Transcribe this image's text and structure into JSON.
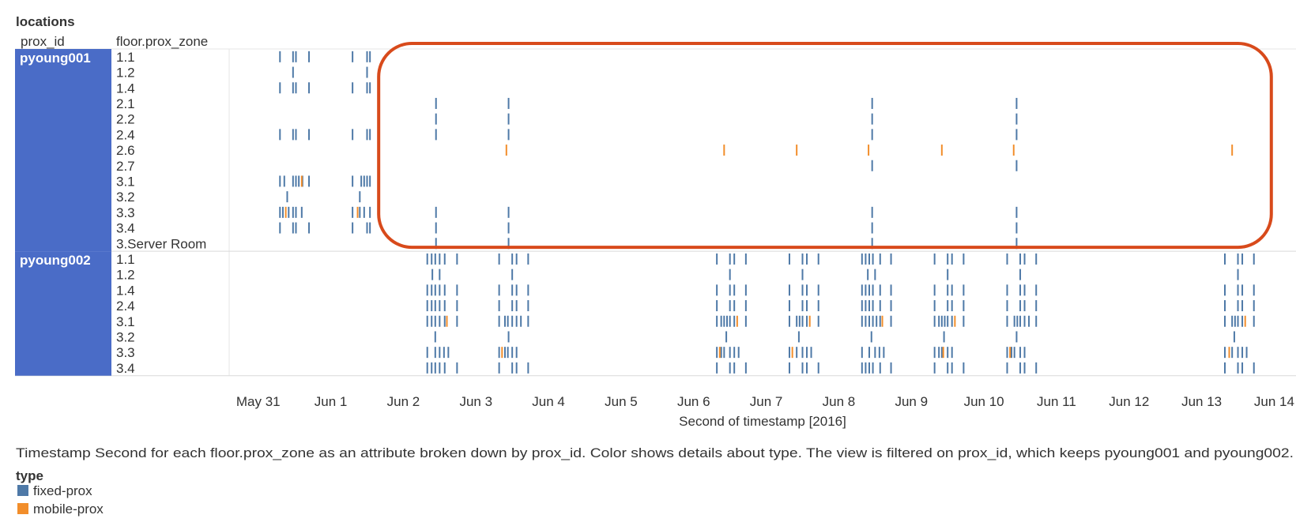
{
  "sheet_title": "locations",
  "col_headers": {
    "prox_id": "prox_id",
    "zone": "floor.prox_zone"
  },
  "x_axis_title": "Second of timestamp [2016]",
  "caption": "Timestamp Second for each floor.prox_zone as an attribute broken down by prox_id.  Color shows details about type. The view is filtered on prox_id, which keeps pyoung001 and pyoung002.",
  "legend": {
    "title": "type",
    "items": [
      {
        "label": "fixed-prox",
        "color": "#4E79A7"
      },
      {
        "label": "mobile-prox",
        "color": "#F28E2B"
      }
    ]
  },
  "colors": {
    "fixed": "#4E79A7",
    "mobile": "#F28E2B",
    "group_band": "#4A6CC7",
    "highlight": "#D84A1B"
  },
  "chart_data": {
    "type": "strip",
    "x_unit": "day of June 2016 (May 31 = 0)",
    "xlim": [
      -0.4,
      14.3
    ],
    "x_ticks": [
      {
        "label": "May 31",
        "value": 0
      },
      {
        "label": "Jun 1",
        "value": 1
      },
      {
        "label": "Jun 2",
        "value": 2
      },
      {
        "label": "Jun 3",
        "value": 3
      },
      {
        "label": "Jun 4",
        "value": 4
      },
      {
        "label": "Jun 5",
        "value": 5
      },
      {
        "label": "Jun 6",
        "value": 6
      },
      {
        "label": "Jun 7",
        "value": 7
      },
      {
        "label": "Jun 8",
        "value": 8
      },
      {
        "label": "Jun 9",
        "value": 9
      },
      {
        "label": "Jun 10",
        "value": 10
      },
      {
        "label": "Jun 11",
        "value": 11
      },
      {
        "label": "Jun 12",
        "value": 12
      },
      {
        "label": "Jun 13",
        "value": 13
      },
      {
        "label": "Jun 14",
        "value": 14
      }
    ],
    "groups": [
      {
        "prox_id": "pyoung001",
        "zones": [
          {
            "zone": "1.1",
            "fixed": [
              0.3,
              0.48,
              0.52,
              0.7,
              1.3,
              1.5,
              1.54
            ],
            "mobile": []
          },
          {
            "zone": "1.2",
            "fixed": [
              0.48,
              1.5
            ],
            "mobile": []
          },
          {
            "zone": "1.4",
            "fixed": [
              0.3,
              0.48,
              0.52,
              0.7,
              1.3,
              1.5,
              1.54
            ],
            "mobile": []
          },
          {
            "zone": "2.1",
            "fixed": [
              2.45,
              3.45,
              8.46,
              10.45
            ],
            "mobile": []
          },
          {
            "zone": "2.2",
            "fixed": [
              2.45,
              3.45,
              8.46,
              10.45
            ],
            "mobile": []
          },
          {
            "zone": "2.4",
            "fixed": [
              0.3,
              0.48,
              0.52,
              0.7,
              1.3,
              1.5,
              1.54,
              2.45,
              3.45,
              8.46,
              10.45
            ],
            "mobile": []
          },
          {
            "zone": "2.6",
            "fixed": [],
            "mobile": [
              3.42,
              6.42,
              7.42,
              8.41,
              9.42,
              10.41,
              13.42
            ]
          },
          {
            "zone": "2.7",
            "fixed": [
              8.46,
              10.45
            ],
            "mobile": []
          },
          {
            "zone": "3.1",
            "fixed": [
              0.3,
              0.36,
              0.48,
              0.52,
              0.56,
              0.61,
              0.7,
              1.3,
              1.42,
              1.46,
              1.5,
              1.54
            ],
            "mobile": [
              0.6
            ]
          },
          {
            "zone": "3.2",
            "fixed": [
              0.4,
              1.4
            ],
            "mobile": []
          },
          {
            "zone": "3.3",
            "fixed": [
              0.3,
              0.34,
              0.42,
              0.48,
              0.52,
              0.6,
              1.3,
              1.4,
              1.46,
              1.54,
              2.45,
              3.45,
              8.46,
              10.45
            ],
            "mobile": [
              0.38,
              1.37
            ]
          },
          {
            "zone": "3.4",
            "fixed": [
              0.3,
              0.48,
              0.52,
              0.7,
              1.3,
              1.5,
              1.54,
              2.45,
              3.45,
              8.46,
              10.45
            ],
            "mobile": []
          },
          {
            "zone": "3.Server Room",
            "fixed": [
              2.45,
              3.45,
              8.46,
              10.45
            ],
            "mobile": []
          }
        ]
      },
      {
        "prox_id": "pyoung002",
        "zones": [
          {
            "zone": "1.1",
            "fixed": [
              2.33,
              2.39,
              2.44,
              2.5,
              2.57,
              2.74,
              3.32,
              3.5,
              3.56,
              3.72,
              6.32,
              6.5,
              6.56,
              6.72,
              7.32,
              7.5,
              7.56,
              7.72,
              8.32,
              8.37,
              8.42,
              8.47,
              8.57,
              8.72,
              9.32,
              9.5,
              9.56,
              9.72,
              10.32,
              10.5,
              10.56,
              10.72,
              13.32,
              13.5,
              13.56,
              13.72
            ],
            "mobile": []
          },
          {
            "zone": "1.2",
            "fixed": [
              2.4,
              2.5,
              3.5,
              6.5,
              7.5,
              8.4,
              8.5,
              9.5,
              10.5,
              13.5
            ],
            "mobile": []
          },
          {
            "zone": "1.4",
            "fixed": [
              2.33,
              2.39,
              2.44,
              2.5,
              2.57,
              2.74,
              3.32,
              3.5,
              3.56,
              3.72,
              6.32,
              6.5,
              6.56,
              6.72,
              7.32,
              7.5,
              7.56,
              7.72,
              8.32,
              8.37,
              8.42,
              8.47,
              8.57,
              8.72,
              9.32,
              9.5,
              9.56,
              9.72,
              10.32,
              10.5,
              10.56,
              10.72,
              13.32,
              13.5,
              13.56,
              13.72
            ],
            "mobile": []
          },
          {
            "zone": "2.4",
            "fixed": [
              2.33,
              2.39,
              2.44,
              2.5,
              2.57,
              2.74,
              3.32,
              3.5,
              3.56,
              3.72,
              6.32,
              6.5,
              6.56,
              6.72,
              7.32,
              7.5,
              7.56,
              7.72,
              8.32,
              8.37,
              8.42,
              8.47,
              8.57,
              8.72,
              9.32,
              9.5,
              9.56,
              9.72,
              10.32,
              10.5,
              10.56,
              10.72,
              13.32,
              13.5,
              13.56,
              13.72
            ],
            "mobile": []
          },
          {
            "zone": "3.1",
            "fixed": [
              2.33,
              2.39,
              2.44,
              2.5,
              2.57,
              2.74,
              3.32,
              3.4,
              3.44,
              3.5,
              3.56,
              3.62,
              3.72,
              6.32,
              6.38,
              6.42,
              6.46,
              6.5,
              6.56,
              6.72,
              7.32,
              7.42,
              7.46,
              7.5,
              7.56,
              7.72,
              8.32,
              8.37,
              8.42,
              8.47,
              8.52,
              8.57,
              8.72,
              9.32,
              9.38,
              9.42,
              9.46,
              9.5,
              9.56,
              9.72,
              10.32,
              10.42,
              10.46,
              10.5,
              10.56,
              10.62,
              10.72,
              13.32,
              13.42,
              13.46,
              13.5,
              13.56,
              13.72
            ],
            "mobile": [
              2.6,
              6.6,
              7.6,
              8.6,
              9.6,
              13.6
            ]
          },
          {
            "zone": "3.2",
            "fixed": [
              2.44,
              3.45,
              6.45,
              7.45,
              8.45,
              9.45,
              10.45,
              13.45
            ],
            "mobile": []
          },
          {
            "zone": "3.3",
            "fixed": [
              2.33,
              2.44,
              2.5,
              2.56,
              2.62,
              3.32,
              3.4,
              3.44,
              3.5,
              3.56,
              6.32,
              6.38,
              6.42,
              6.5,
              6.56,
              6.62,
              7.32,
              7.42,
              7.5,
              7.56,
              7.62,
              8.32,
              8.42,
              8.5,
              8.56,
              8.62,
              9.32,
              9.38,
              9.42,
              9.5,
              9.56,
              10.32,
              10.38,
              10.42,
              10.5,
              10.56,
              13.32,
              13.42,
              13.5,
              13.56,
              13.62
            ],
            "mobile": [
              3.36,
              6.36,
              7.36,
              9.44,
              10.36,
              13.38
            ]
          },
          {
            "zone": "3.4",
            "fixed": [
              2.33,
              2.39,
              2.44,
              2.5,
              2.57,
              2.74,
              3.32,
              3.5,
              3.56,
              3.72,
              6.32,
              6.5,
              6.56,
              6.72,
              7.32,
              7.5,
              7.56,
              7.72,
              8.32,
              8.37,
              8.42,
              8.47,
              8.57,
              8.72,
              9.32,
              9.5,
              9.56,
              9.72,
              10.32,
              10.5,
              10.56,
              10.72,
              13.32,
              13.5,
              13.56,
              13.72
            ],
            "mobile": []
          }
        ]
      }
    ]
  }
}
